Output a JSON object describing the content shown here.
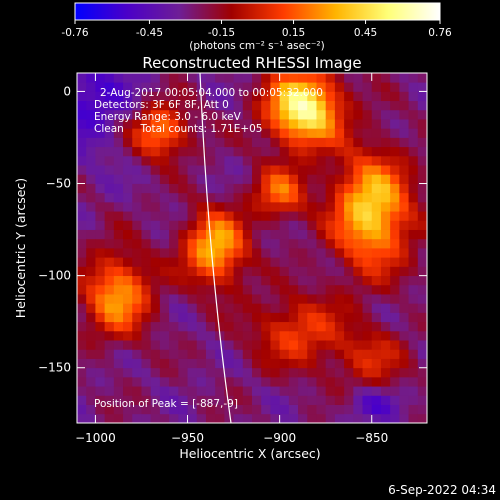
{
  "colorbar": {
    "ticks": [
      "-0.76",
      "-0.45",
      "-0.15",
      "0.15",
      "0.45",
      "0.76"
    ],
    "tick_values": [
      -0.76,
      -0.45,
      -0.15,
      0.15,
      0.45,
      0.76
    ],
    "units_label": "(photons cm⁻² s⁻¹ asec⁻²)",
    "gradient_stops": [
      "#0000ff",
      "#4b00c8",
      "#6e1e96",
      "#a00000",
      "#ff3c00",
      "#ffb400",
      "#ffff78",
      "#ffffff"
    ]
  },
  "chart_data": {
    "type": "heatmap",
    "title": "Reconstructed RHESSI Image",
    "xlabel": "Heliocentric X (arcsec)",
    "ylabel": "Heliocentric Y (arcsec)",
    "xlim": [
      -1010,
      -820
    ],
    "ylim": [
      -180,
      10
    ],
    "x_ticks": [
      -1000,
      -950,
      -900,
      -850
    ],
    "y_ticks": [
      0,
      -50,
      -100,
      -150
    ],
    "x_tick_labels": [
      "−1000",
      "−950",
      "−900",
      "−850"
    ],
    "y_tick_labels": [
      "0",
      "−50",
      "−100",
      "−150"
    ],
    "color_range": [
      -0.76,
      0.76
    ],
    "info_lines": [
      "2-Aug-2017 00:05:04.000 to 00:05:32.000",
      "Detectors: 3F 6F 8F, Att 0",
      "Energy Range: 3.0 - 6.0 keV",
      "Clean     Total counts: 1.71E+05"
    ],
    "peak_label": "Position of Peak = [-887,-9]",
    "peak_position": [
      -887,
      -9
    ],
    "sources": [
      {
        "x": -887,
        "y": -9,
        "intensity": 0.76,
        "sx": 14,
        "sy": 14
      },
      {
        "x": -965,
        "y": -22,
        "intensity": 0.4,
        "sx": 11,
        "sy": 10
      },
      {
        "x": -1005,
        "y": -5,
        "intensity": -0.4,
        "sx": 18,
        "sy": 20
      },
      {
        "x": -935,
        "y": -85,
        "intensity": 0.5,
        "sx": 12,
        "sy": 14
      },
      {
        "x": -900,
        "y": -55,
        "intensity": 0.3,
        "sx": 10,
        "sy": 10
      },
      {
        "x": -850,
        "y": -65,
        "intensity": 0.58,
        "sx": 15,
        "sy": 22
      },
      {
        "x": -988,
        "y": -110,
        "intensity": 0.42,
        "sx": 13,
        "sy": 16
      },
      {
        "x": -890,
        "y": -130,
        "intensity": 0.22,
        "sx": 18,
        "sy": 14
      },
      {
        "x": -850,
        "y": -145,
        "intensity": 0.12,
        "sx": 14,
        "sy": 12
      },
      {
        "x": -850,
        "y": -170,
        "intensity": -0.35,
        "sx": 10,
        "sy": 6
      }
    ],
    "grid_step": 5
  },
  "footer": {
    "timestamp": "6-Sep-2022 04:34"
  }
}
